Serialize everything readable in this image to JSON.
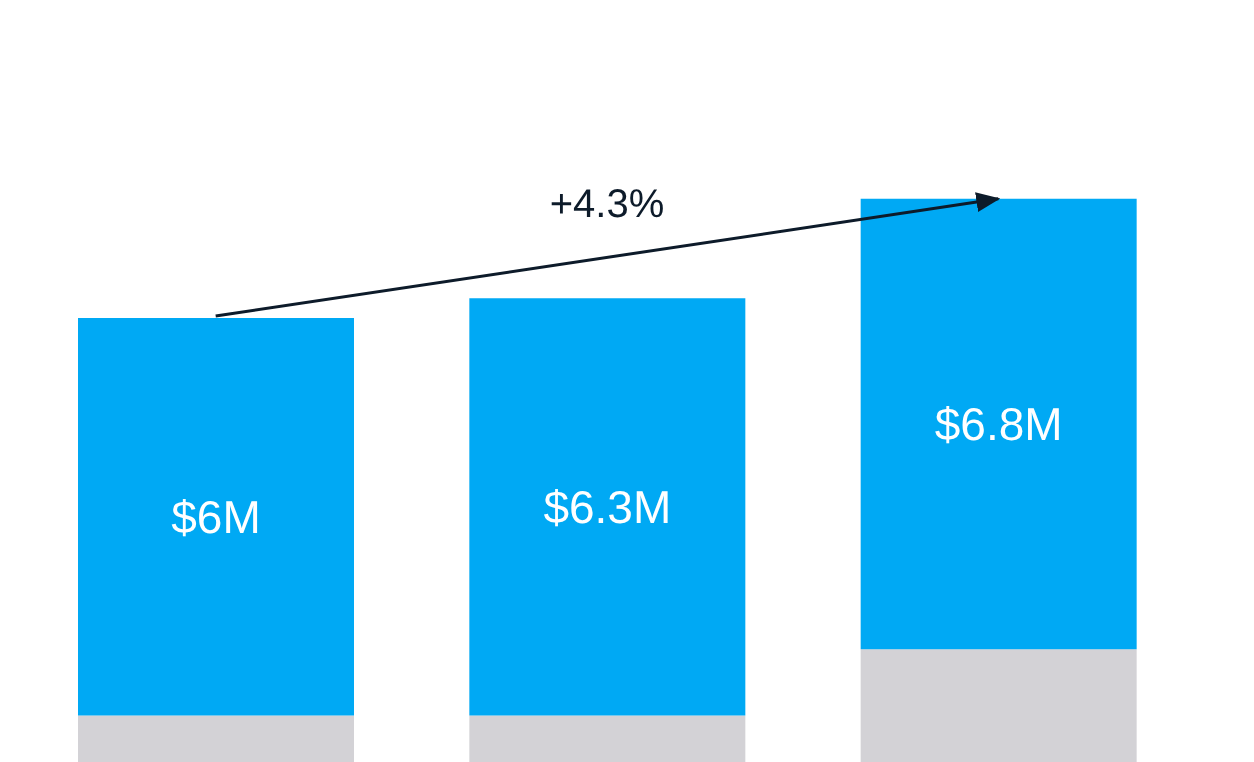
{
  "chart_data": {
    "type": "bar",
    "stacked": true,
    "categories": [
      null,
      null,
      null
    ],
    "series": [
      {
        "color": "#d3d2d6",
        "values": [
          0.7,
          0.7,
          1.7
        ]
      },
      {
        "color": "#00a9f4",
        "values": [
          6,
          6.3,
          6.8
        ],
        "value_labels": [
          "$6M",
          "$6.3M",
          "$6.8M"
        ]
      }
    ],
    "ylim": [
      0,
      11.5
    ],
    "tick_labels": false,
    "legend": false,
    "grid": false,
    "annotations": [
      "+4.3%"
    ]
  }
}
